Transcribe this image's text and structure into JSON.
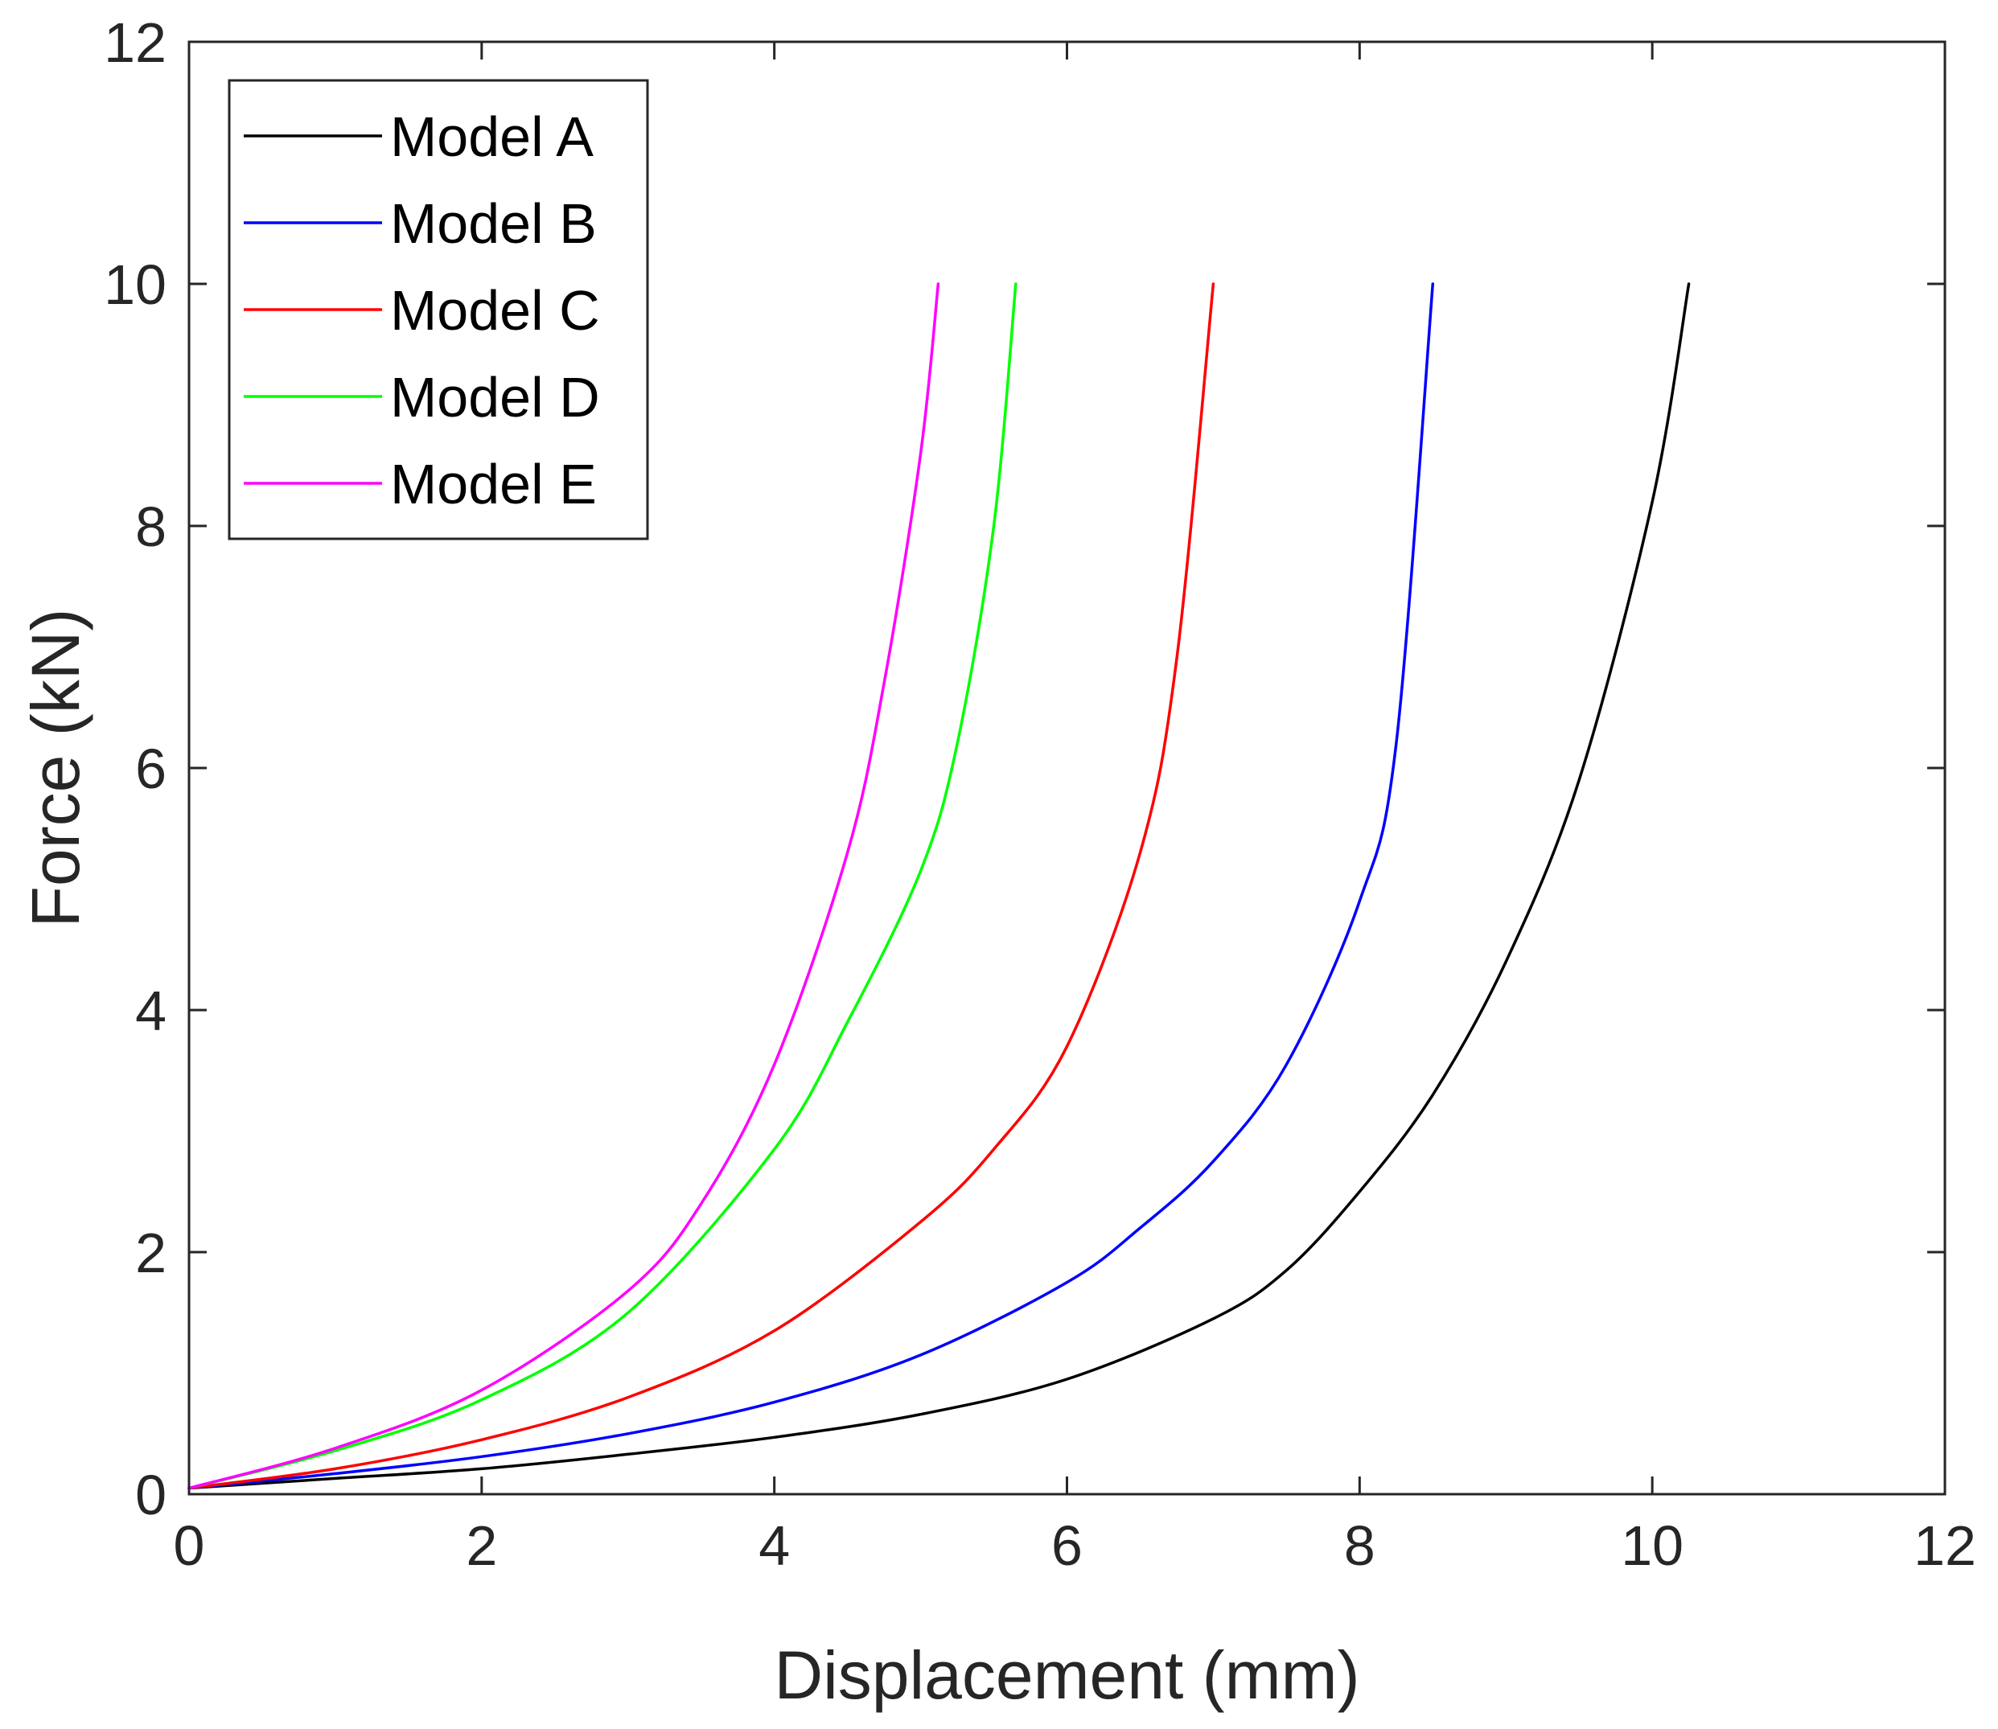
{
  "chart_data": {
    "type": "line",
    "title": "",
    "xlabel": "Displacement (mm)",
    "ylabel": "Force (kN)",
    "xlim": [
      0,
      12
    ],
    "ylim": [
      0,
      12
    ],
    "xticks": [
      0,
      2,
      4,
      6,
      8,
      10,
      12
    ],
    "yticks": [
      0,
      2,
      4,
      6,
      8,
      10,
      12
    ],
    "xtick_labels": [
      "0",
      "2",
      "4",
      "6",
      "8",
      "10",
      "12"
    ],
    "ytick_labels": [
      "0",
      "2",
      "4",
      "6",
      "8",
      "10",
      "12"
    ],
    "grid": false,
    "legend_position": "top-left",
    "series": [
      {
        "name": "Model A",
        "color": "#000000",
        "points": [
          [
            0,
            0.05
          ],
          [
            1,
            0.13
          ],
          [
            2,
            0.21
          ],
          [
            3,
            0.33
          ],
          [
            4,
            0.47
          ],
          [
            5,
            0.66
          ],
          [
            6,
            0.95
          ],
          [
            7,
            1.45
          ],
          [
            7.5,
            1.85
          ],
          [
            8,
            2.5
          ],
          [
            8.5,
            3.3
          ],
          [
            9,
            4.4
          ],
          [
            9.5,
            5.9
          ],
          [
            10,
            8.2
          ],
          [
            10.25,
            10
          ]
        ]
      },
      {
        "name": "Model B",
        "color": "#0000ff",
        "points": [
          [
            0,
            0.05
          ],
          [
            1,
            0.17
          ],
          [
            2,
            0.31
          ],
          [
            3,
            0.5
          ],
          [
            4,
            0.76
          ],
          [
            5,
            1.15
          ],
          [
            6,
            1.75
          ],
          [
            6.5,
            2.2
          ],
          [
            7,
            2.75
          ],
          [
            7.5,
            3.55
          ],
          [
            8,
            4.9
          ],
          [
            8.25,
            6.2
          ],
          [
            8.5,
            10
          ]
        ]
      },
      {
        "name": "Model C",
        "color": "#ff0000",
        "points": [
          [
            0,
            0.05
          ],
          [
            1,
            0.21
          ],
          [
            2,
            0.45
          ],
          [
            3,
            0.8
          ],
          [
            4,
            1.35
          ],
          [
            5,
            2.25
          ],
          [
            5.5,
            2.85
          ],
          [
            6,
            3.7
          ],
          [
            6.5,
            5.3
          ],
          [
            6.75,
            6.9
          ],
          [
            7,
            10
          ]
        ]
      },
      {
        "name": "Model D",
        "color": "#00ff00",
        "points": [
          [
            0,
            0.05
          ],
          [
            1,
            0.36
          ],
          [
            2,
            0.78
          ],
          [
            3,
            1.5
          ],
          [
            4,
            2.85
          ],
          [
            4.5,
            3.9
          ],
          [
            5,
            5.15
          ],
          [
            5.25,
            6.2
          ],
          [
            5.5,
            8
          ],
          [
            5.65,
            10
          ]
        ]
      },
      {
        "name": "Model E",
        "color": "#ff00ff",
        "points": [
          [
            0,
            0.05
          ],
          [
            1,
            0.38
          ],
          [
            2,
            0.86
          ],
          [
            3,
            1.68
          ],
          [
            3.5,
            2.4
          ],
          [
            4,
            3.55
          ],
          [
            4.5,
            5.3
          ],
          [
            4.75,
            6.7
          ],
          [
            5,
            8.6
          ],
          [
            5.12,
            10
          ]
        ]
      }
    ]
  }
}
